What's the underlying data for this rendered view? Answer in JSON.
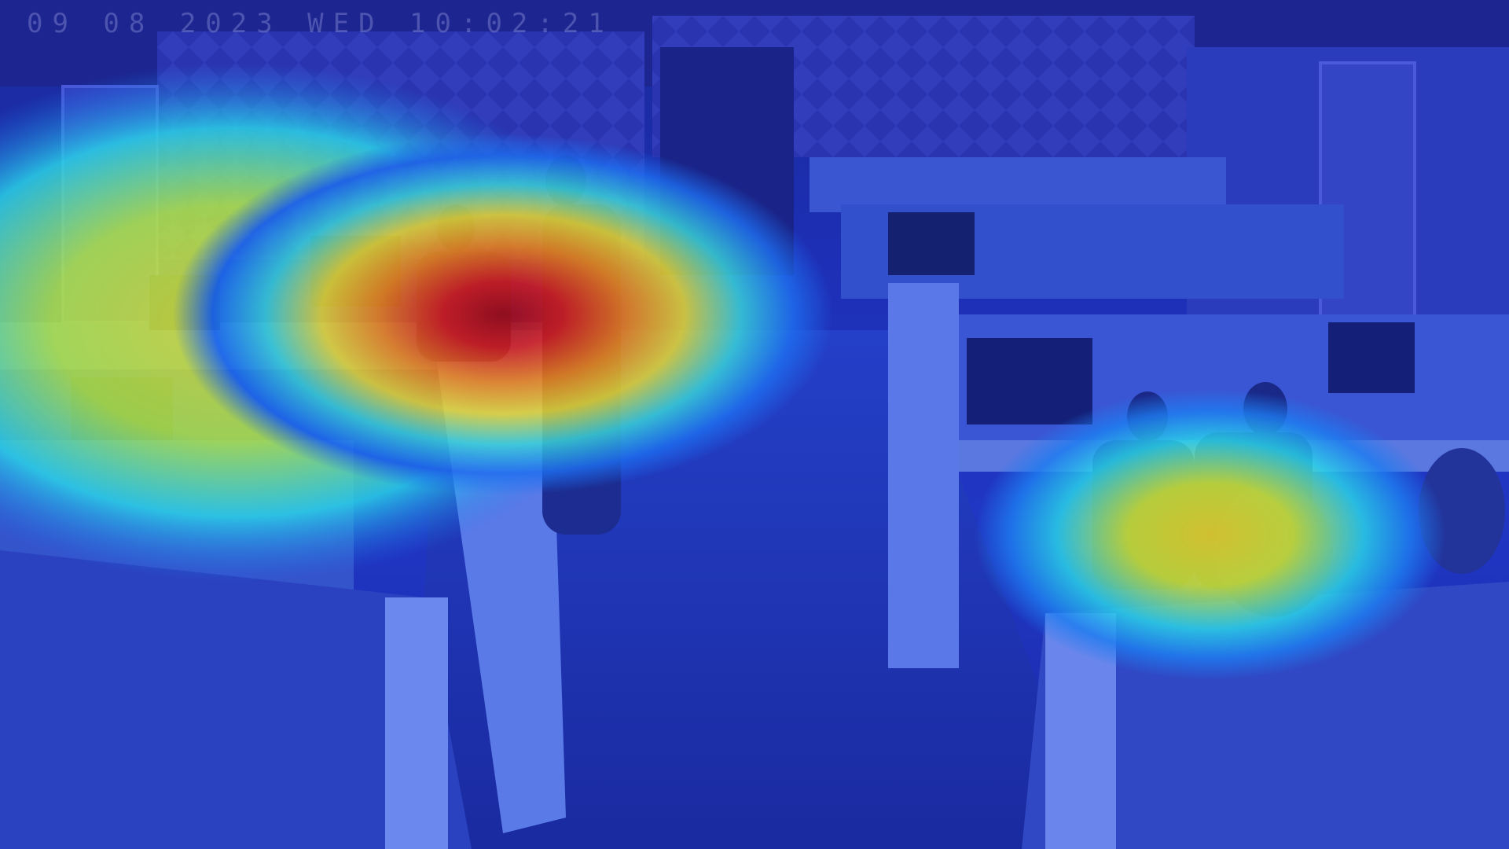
{
  "overlay": {
    "timestamp": "09 08 2023 WED 10:02:21"
  },
  "heatmap": {
    "colormap": "jet",
    "palette": [
      "#1a2ad0",
      "#1e7cf0",
      "#2ad8e8",
      "#d8f02a",
      "#f8e01a",
      "#f88a10",
      "#e81a10",
      "#b00808"
    ]
  }
}
